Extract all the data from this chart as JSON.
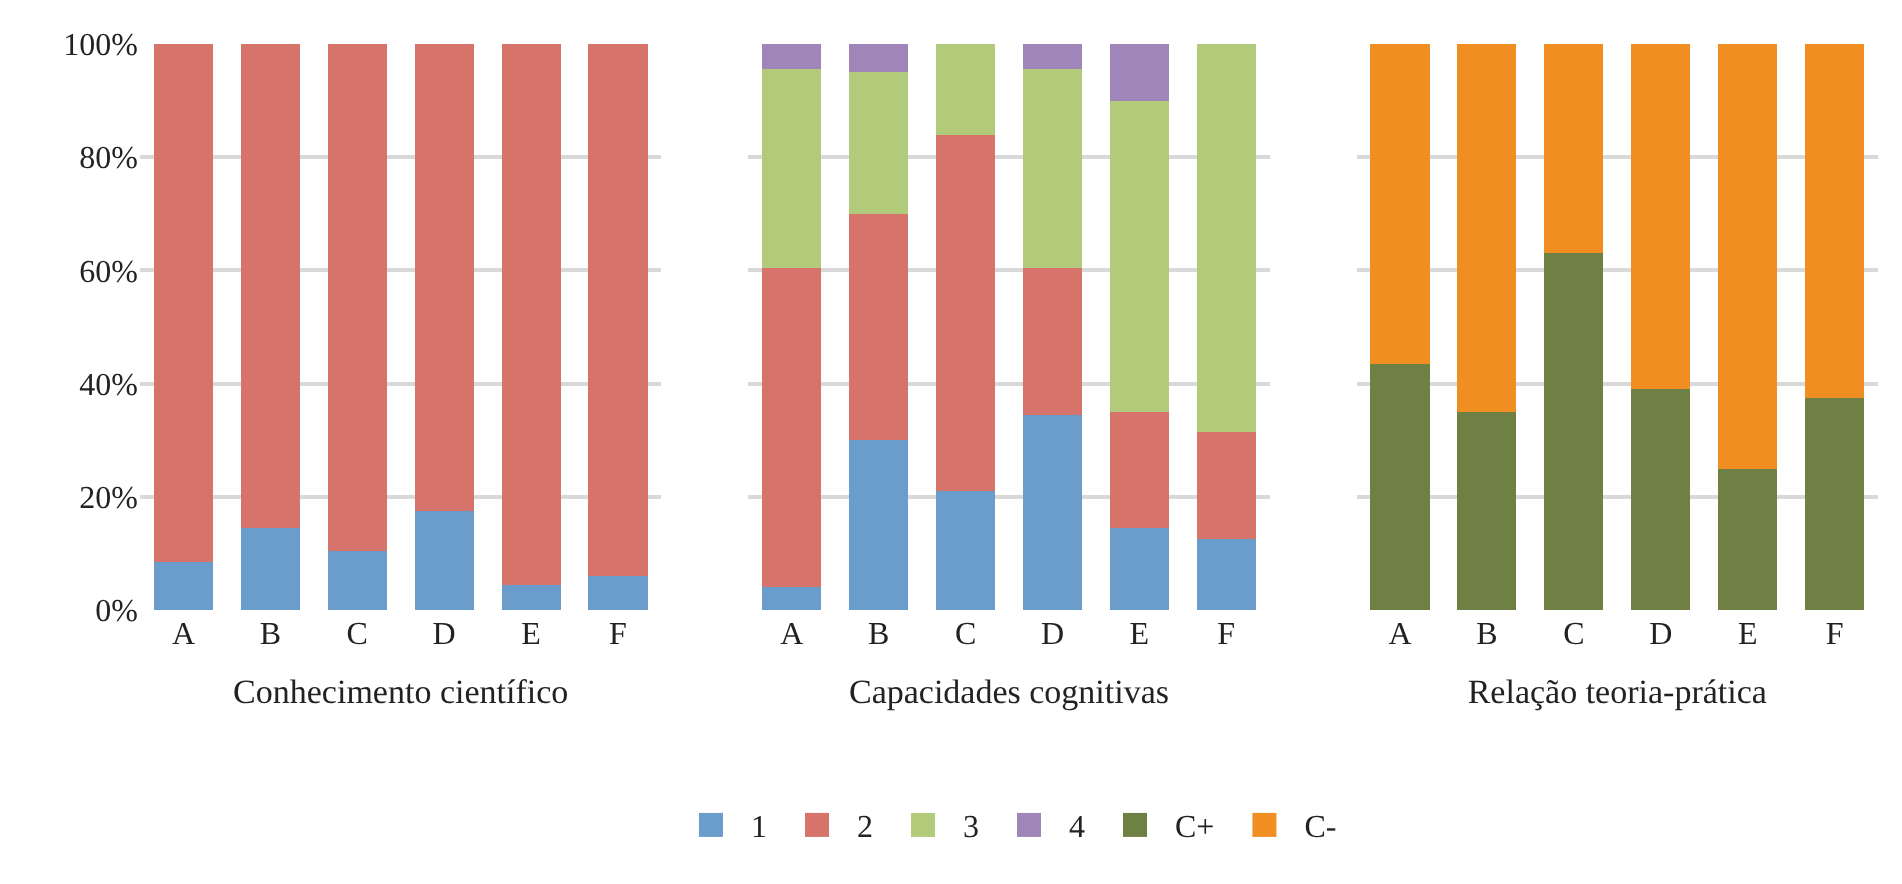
{
  "chart_data": [
    {
      "type": "bar",
      "stacked": true,
      "xlabel": "Conhecimento científico",
      "categories": [
        "A",
        "B",
        "C",
        "D",
        "E",
        "F"
      ],
      "ylim": [
        0,
        100
      ],
      "yticks": [
        {
          "value": 0,
          "label": "0%"
        },
        {
          "value": 20,
          "label": "20%"
        },
        {
          "value": 40,
          "label": "40%"
        },
        {
          "value": 60,
          "label": "60%"
        },
        {
          "value": 80,
          "label": "80%"
        },
        {
          "value": 100,
          "label": "100%"
        }
      ],
      "grid": "y",
      "legend": "bottom",
      "series": [
        {
          "name": "1",
          "color": "#6a9ccc",
          "values": [
            8.5,
            14.5,
            10.5,
            17.5,
            4.5,
            6
          ]
        },
        {
          "name": "2",
          "color": "#d6736b",
          "values": [
            91.5,
            85.5,
            89.5,
            82.5,
            95.5,
            94
          ]
        }
      ]
    },
    {
      "type": "bar",
      "stacked": true,
      "xlabel": "Capacidades cognitivas",
      "categories": [
        "A",
        "B",
        "C",
        "D",
        "E",
        "F"
      ],
      "ylim": [
        0,
        100
      ],
      "tick_labels": "x",
      "grid": "y",
      "legend": "bottom",
      "series": [
        {
          "name": "1",
          "color": "#6a9ccc",
          "values": [
            4,
            30,
            21,
            34.5,
            14.5,
            12.5
          ]
        },
        {
          "name": "2",
          "color": "#d6736b",
          "values": [
            56.5,
            40,
            63,
            26,
            20.5,
            19
          ]
        },
        {
          "name": "3",
          "color": "#b2cb7b",
          "values": [
            35,
            25,
            16,
            35,
            55,
            68.5
          ]
        },
        {
          "name": "4",
          "color": "#a085b8",
          "values": [
            4.5,
            5,
            0,
            4.5,
            10,
            0
          ]
        }
      ]
    },
    {
      "type": "bar",
      "stacked": true,
      "xlabel": "Relação teoria-prática",
      "categories": [
        "A",
        "B",
        "C",
        "D",
        "E",
        "F"
      ],
      "ylim": [
        0,
        100
      ],
      "tick_labels": "x",
      "grid": "y",
      "legend": "bottom",
      "series": [
        {
          "name": "C+",
          "color": "#6e8043",
          "values": [
            43.5,
            35,
            63,
            39,
            25,
            37.5
          ]
        },
        {
          "name": "C-",
          "color": "#f08e22",
          "values": [
            56.5,
            65,
            37,
            61,
            75,
            62.5
          ]
        }
      ]
    }
  ]
}
